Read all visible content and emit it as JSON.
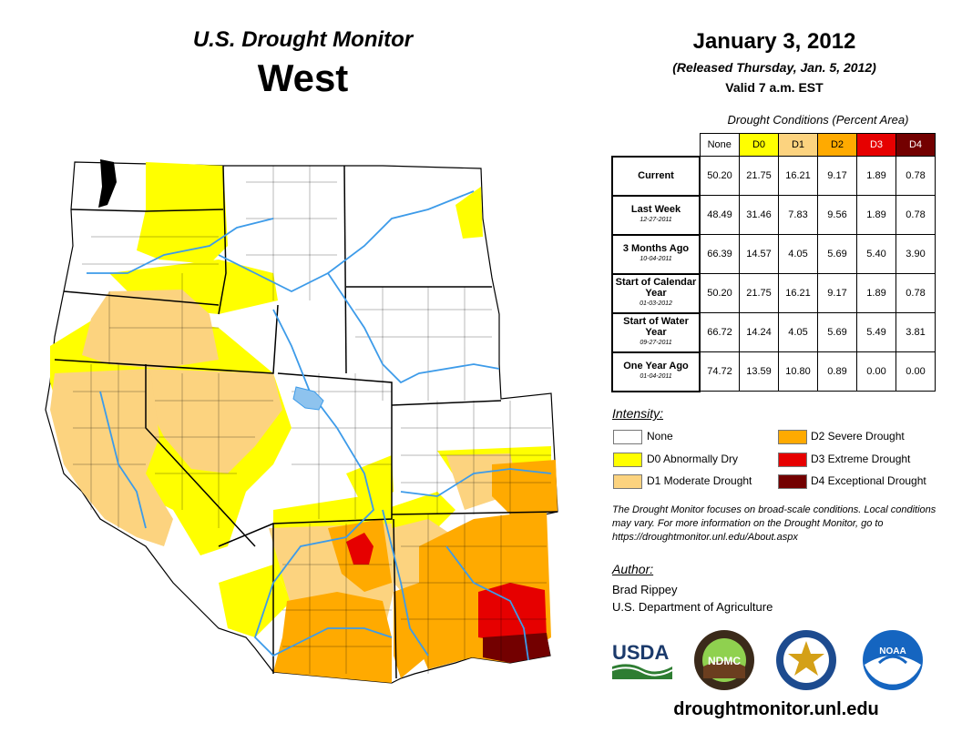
{
  "header": {
    "title": "U.S. Drought Monitor",
    "region": "West",
    "date": "January 3, 2012",
    "released": "(Released Thursday, Jan. 5, 2012)",
    "valid": "Valid 7 a.m. EST"
  },
  "table": {
    "caption": "Drought Conditions (Percent Area)",
    "columns": [
      "None",
      "D0",
      "D1",
      "D2",
      "D3",
      "D4"
    ],
    "rows": [
      {
        "label": "Current",
        "date": "",
        "values": [
          "50.20",
          "21.75",
          "16.21",
          "9.17",
          "1.89",
          "0.78"
        ]
      },
      {
        "label": "Last Week",
        "date": "12-27-2011",
        "values": [
          "48.49",
          "31.46",
          "7.83",
          "9.56",
          "1.89",
          "0.78"
        ]
      },
      {
        "label": "3 Months Ago",
        "date": "10-04-2011",
        "values": [
          "66.39",
          "14.57",
          "4.05",
          "5.69",
          "5.40",
          "3.90"
        ]
      },
      {
        "label": "Start of Calendar Year",
        "date": "01-03-2012",
        "values": [
          "50.20",
          "21.75",
          "16.21",
          "9.17",
          "1.89",
          "0.78"
        ]
      },
      {
        "label": "Start of Water Year",
        "date": "09-27-2011",
        "values": [
          "66.72",
          "14.24",
          "4.05",
          "5.69",
          "5.49",
          "3.81"
        ]
      },
      {
        "label": "One Year Ago",
        "date": "01-04-2011",
        "values": [
          "74.72",
          "13.59",
          "10.80",
          "0.89",
          "0.00",
          "0.00"
        ]
      }
    ]
  },
  "legend": {
    "title": "Intensity:",
    "items": [
      {
        "label": "None",
        "color": "#ffffff"
      },
      {
        "label": "D0 Abnormally Dry",
        "color": "#ffff00"
      },
      {
        "label": "D1 Moderate Drought",
        "color": "#fcd37f"
      },
      {
        "label": "D2 Severe Drought",
        "color": "#ffaa00"
      },
      {
        "label": "D3 Extreme Drought",
        "color": "#e60000"
      },
      {
        "label": "D4 Exceptional Drought",
        "color": "#730000"
      }
    ]
  },
  "note": "The Drought Monitor focuses on broad-scale conditions. Local conditions may vary. For more information on the Drought Monitor, go to https://droughtmonitor.unl.edu/About.aspx",
  "author": {
    "heading": "Author:",
    "name": "Brad Rippey",
    "org": "U.S. Department of Agriculture"
  },
  "logos": {
    "usda": "USDA",
    "ndmc": "NDMC",
    "noaa": "NOAA"
  },
  "site": "droughtmonitor.unl.edu",
  "colors": {
    "none": "#ffffff",
    "d0": "#ffff00",
    "d1": "#fcd37f",
    "d2": "#ffaa00",
    "d3": "#e60000",
    "d4": "#730000",
    "river": "#3d9be9"
  }
}
